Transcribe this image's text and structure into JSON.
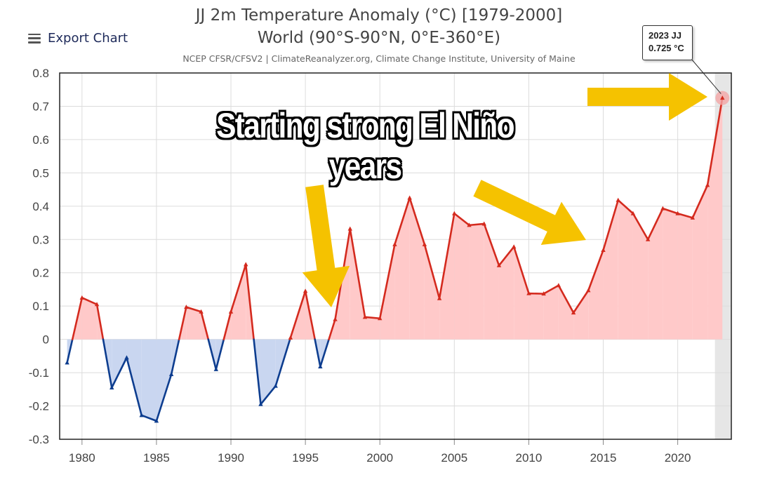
{
  "header": {
    "title_line1": "JJ 2m Temperature Anomaly (°C) [1979-2000]",
    "title_line2": "World (90°S-90°N, 0°E-360°E)",
    "source": "NCEP CFSR/CFSV2 | ClimateReanalyzer.org, Climate Change Institute, University of Maine"
  },
  "menu": {
    "export_label": "Export Chart",
    "icon": "hamburger-menu-icon"
  },
  "tooltip": {
    "line1": "2023 JJ",
    "line2": "0.725 °C"
  },
  "annotation": {
    "text": "Starting strong El Niño years",
    "arrow_color": "#f5c200"
  },
  "colors": {
    "positive_line": "#d42a1e",
    "positive_fill": "#ffc9c9",
    "negative_line": "#0d3d8f",
    "negative_fill": "#c9d6f0",
    "highlight_band": "#e6e6e6"
  },
  "chart_data": {
    "type": "area",
    "x": [
      1979,
      1980,
      1981,
      1982,
      1983,
      1984,
      1985,
      1986,
      1987,
      1988,
      1989,
      1990,
      1991,
      1992,
      1993,
      1994,
      1995,
      1996,
      1997,
      1998,
      1999,
      2000,
      2001,
      2002,
      2003,
      2004,
      2005,
      2006,
      2007,
      2008,
      2009,
      2010,
      2011,
      2012,
      2013,
      2014,
      2015,
      2016,
      2017,
      2018,
      2019,
      2020,
      2021,
      2022,
      2023
    ],
    "values": [
      -0.07,
      0.125,
      0.105,
      -0.145,
      -0.055,
      -0.228,
      -0.245,
      -0.105,
      0.097,
      0.083,
      -0.09,
      0.083,
      0.225,
      -0.195,
      -0.14,
      0.005,
      0.145,
      -0.082,
      0.06,
      0.332,
      0.067,
      0.063,
      0.285,
      0.425,
      0.285,
      0.123,
      0.378,
      0.343,
      0.347,
      0.222,
      0.278,
      0.138,
      0.137,
      0.162,
      0.08,
      0.147,
      0.268,
      0.418,
      0.378,
      0.3,
      0.393,
      0.378,
      0.365,
      0.463,
      0.725
    ],
    "xlim": [
      1978.5,
      2023.6
    ],
    "ylim": [
      -0.3,
      0.8
    ],
    "yticks": [
      "0.8",
      "0.7",
      "0.6",
      "0.5",
      "0.4",
      "0.3",
      "0.2",
      "0.1",
      "0",
      "-0.1",
      "-0.2",
      "-0.3"
    ],
    "xticks": [
      "1980",
      "1985",
      "1990",
      "1995",
      "2000",
      "2005",
      "2010",
      "2015",
      "2020"
    ],
    "grid": true,
    "baseline": 0,
    "highlight_year": 2023
  }
}
